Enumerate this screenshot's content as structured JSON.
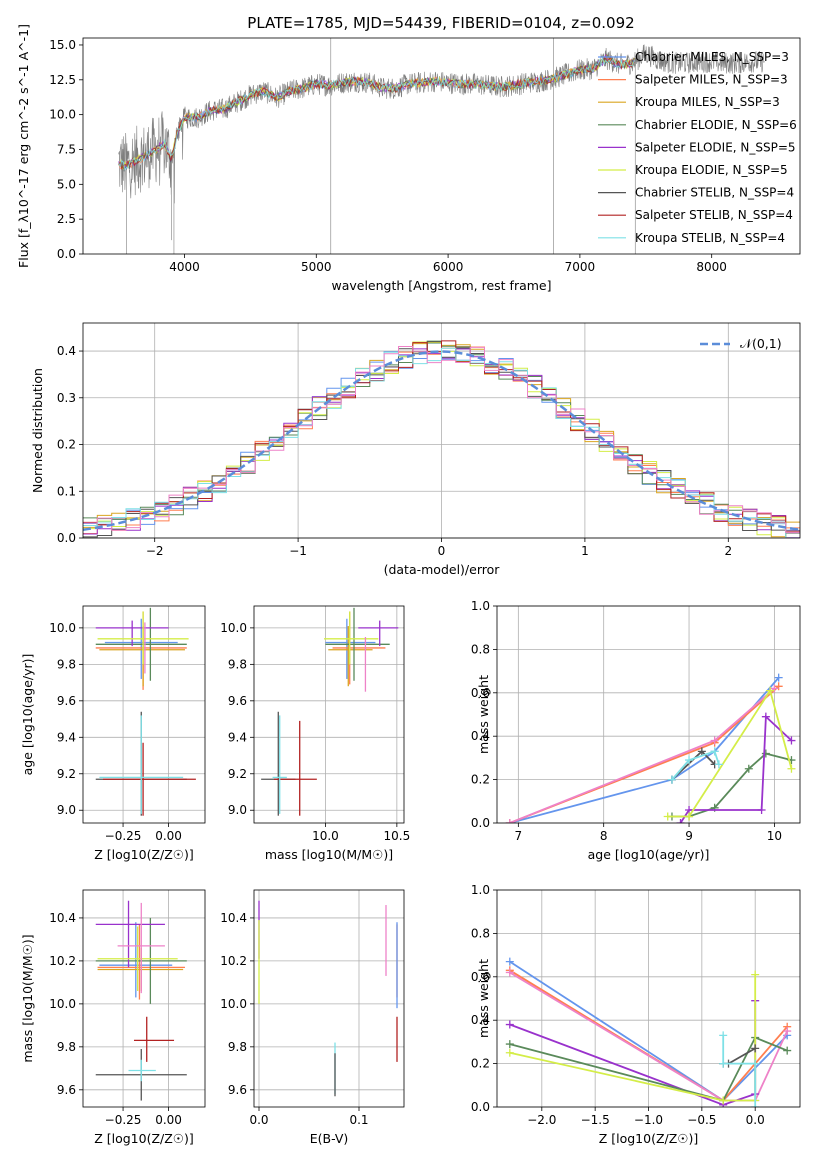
{
  "chart_data": [
    {
      "id": "spectrum",
      "type": "line",
      "title": "PLATE=1785, MJD=54439, FIBERID=0104, z=0.092",
      "xlabel": "wavelength [Angstrom, rest frame]",
      "ylabel": "Flux [f_λ10^-17 erg cm^-2 s^-1 A^-1]",
      "xlim": [
        3230,
        8670
      ],
      "ylim": [
        0,
        15.5
      ],
      "xticks": [
        4000,
        5000,
        6000,
        7000,
        8000
      ],
      "yticks": [
        0.0,
        2.5,
        5.0,
        7.5,
        10.0,
        12.5,
        15.0
      ],
      "grid": false,
      "legend_position": "right",
      "data_continuum_x": [
        3500,
        3550,
        3600,
        3650,
        3700,
        3750,
        3800,
        3850,
        3900,
        3950,
        4000,
        4100,
        4200,
        4300,
        4400,
        4500,
        4600,
        4700,
        4800,
        4900,
        5000,
        5100,
        5200,
        5300,
        5400,
        5500,
        5600,
        5700,
        5800,
        5900,
        6000,
        6100,
        6200,
        6300,
        6400,
        6500,
        6600,
        6700,
        6800,
        6900,
        7000,
        7100,
        7200,
        7300,
        7400,
        7500,
        7600,
        7700,
        7800,
        7900,
        8000,
        8100,
        8200,
        8300,
        8400
      ],
      "data_continuum_y": [
        6.5,
        6.3,
        6.5,
        6.8,
        7.0,
        7.3,
        7.6,
        7.9,
        6.8,
        8.8,
        9.8,
        9.8,
        10.3,
        10.4,
        10.9,
        11.4,
        11.7,
        11.2,
        11.7,
        11.9,
        12.2,
        12.1,
        12.3,
        12.4,
        12.3,
        11.9,
        11.9,
        12.2,
        12.3,
        12.4,
        12.3,
        12.2,
        12.2,
        12.1,
        12.0,
        12.1,
        12.3,
        12.4,
        12.6,
        12.9,
        13.2,
        13.3,
        14.0,
        13.6,
        13.7,
        14.4,
        13.9,
        13.7,
        13.7,
        13.8,
        13.8,
        13.7,
        13.7,
        13.8,
        13.8
      ],
      "legend": [
        {
          "label": "Chabrier MILES, N_SSP=3",
          "color": "#6495ed"
        },
        {
          "label": "Salpeter MILES, N_SSP=3",
          "color": "#ff7f50"
        },
        {
          "label": "Kroupa MILES, N_SSP=3",
          "color": "#daa520"
        },
        {
          "label": "Chabrier ELODIE, N_SSP=6",
          "color": "#5a8a5a"
        },
        {
          "label": "Salpeter ELODIE, N_SSP=5",
          "color": "#9932cc"
        },
        {
          "label": "Kroupa ELODIE, N_SSP=5",
          "color": "#d4ed48"
        },
        {
          "label": "Chabrier STELIB, N_SSP=4",
          "color": "#555555"
        },
        {
          "label": "Salpeter STELIB, N_SSP=4",
          "color": "#b22222"
        },
        {
          "label": "Kroupa STELIB, N_SSP=4",
          "color": "#7ee0e6"
        }
      ]
    },
    {
      "id": "residuals",
      "type": "line",
      "xlabel": "(data-model)/error",
      "ylabel": "Normed distribution",
      "xlim": [
        -2.5,
        2.5
      ],
      "ylim": [
        0,
        0.46
      ],
      "xticks": [
        -2,
        -1,
        0,
        1,
        2
      ],
      "yticks": [
        0.0,
        0.1,
        0.2,
        0.3,
        0.4
      ],
      "grid": true,
      "legend": [
        {
          "label": "𝒩(0,1)",
          "color": "#5b8dd9"
        }
      ],
      "legend_position": "top-right",
      "bin_edges_start": -2.5,
      "bin_width": 0.1
    },
    {
      "id": "age_vs_Z",
      "type": "scatter",
      "xlabel": "Z [log10(Z/Z☉)]",
      "ylabel": "age  [log10(age/yr)]",
      "xlim": [
        -0.47,
        0.2
      ],
      "ylim": [
        8.93,
        10.12
      ],
      "xticks": [
        -0.25,
        0.0
      ],
      "yticks": [
        9.0,
        9.2,
        9.4,
        9.6,
        9.8,
        10.0
      ],
      "grid": true,
      "points": [
        {
          "x": -0.15,
          "y": 9.92,
          "xerr": [
            0.2,
            0.2
          ],
          "yerr": [
            0.2,
            0.13
          ],
          "color": "#6495ed"
        },
        {
          "x": -0.14,
          "y": 9.89,
          "xerr": [
            0.26,
            0.24
          ],
          "yerr": [
            0.23,
            0.2
          ],
          "color": "#ff7f50"
        },
        {
          "x": -0.14,
          "y": 9.88,
          "xerr": [
            0.24,
            0.23
          ],
          "yerr": [
            0.2,
            0.13
          ],
          "color": "#daa520"
        },
        {
          "x": -0.1,
          "y": 9.91,
          "xerr": [
            0.3,
            0.2
          ],
          "yerr": [
            0.2,
            0.2
          ],
          "color": "#5a8a5a"
        },
        {
          "x": -0.2,
          "y": 10.0,
          "xerr": [
            0.2,
            0.2
          ],
          "yerr": [
            0.1,
            0.04
          ],
          "color": "#9932cc"
        },
        {
          "x": -0.14,
          "y": 9.94,
          "xerr": [
            0.25,
            0.25
          ],
          "yerr": [
            0.14,
            0.15
          ],
          "color": "#d4ed48"
        },
        {
          "x": -0.15,
          "y": 9.17,
          "xerr": [
            0.25,
            0.25
          ],
          "yerr": [
            0.2,
            0.37
          ],
          "color": "#555555"
        },
        {
          "x": -0.14,
          "y": 9.17,
          "xerr": [
            0.22,
            0.29
          ],
          "yerr": [
            0.2,
            0.2
          ],
          "color": "#b22222"
        },
        {
          "x": -0.15,
          "y": 9.18,
          "xerr": [
            0.23,
            0.23
          ],
          "yerr": [
            0.2,
            0.34
          ],
          "color": "#7ee0e6"
        },
        {
          "x": -0.13,
          "y": 9.9,
          "xerr": [
            0.0,
            0.0
          ],
          "yerr": [
            0.15,
            0.13
          ],
          "color": "#ee82c8"
        }
      ]
    },
    {
      "id": "age_vs_mass",
      "type": "scatter",
      "xlabel": "mass [log10(M/M☉)]",
      "ylabel": "",
      "xlim": [
        9.5,
        10.55
      ],
      "ylim": [
        8.93,
        10.12
      ],
      "xticks": [
        10.0,
        10.5
      ],
      "yticks": [
        9.0,
        9.2,
        9.4,
        9.6,
        9.8,
        10.0
      ],
      "grid": true,
      "points": [
        {
          "x": 10.15,
          "y": 9.92,
          "xerr": [
            0.15,
            0.2
          ],
          "yerr": [
            0.2,
            0.13
          ],
          "color": "#6495ed"
        },
        {
          "x": 10.17,
          "y": 9.89,
          "xerr": [
            0.12,
            0.25
          ],
          "yerr": [
            0.2,
            0.2
          ],
          "color": "#ff7f50"
        },
        {
          "x": 10.16,
          "y": 9.88,
          "xerr": [
            0.14,
            0.17
          ],
          "yerr": [
            0.2,
            0.13
          ],
          "color": "#daa520"
        },
        {
          "x": 10.2,
          "y": 9.91,
          "xerr": [
            0.2,
            0.25
          ],
          "yerr": [
            0.2,
            0.2
          ],
          "color": "#5a8a5a"
        },
        {
          "x": 10.38,
          "y": 10.0,
          "xerr": [
            0.15,
            0.13
          ],
          "yerr": [
            0.1,
            0.04
          ],
          "color": "#9932cc"
        },
        {
          "x": 10.17,
          "y": 9.94,
          "xerr": [
            0.18,
            0.2
          ],
          "yerr": [
            0.14,
            0.15
          ],
          "color": "#d4ed48"
        },
        {
          "x": 9.67,
          "y": 9.17,
          "xerr": [
            0.12,
            0.12
          ],
          "yerr": [
            0.2,
            0.37
          ],
          "color": "#555555"
        },
        {
          "x": 9.82,
          "y": 9.17,
          "xerr": [
            0.18,
            0.12
          ],
          "yerr": [
            0.2,
            0.32
          ],
          "color": "#b22222"
        },
        {
          "x": 9.68,
          "y": 9.18,
          "xerr": [
            0.05,
            0.05
          ],
          "yerr": [
            0.2,
            0.34
          ],
          "color": "#7ee0e6"
        },
        {
          "x": 10.28,
          "y": 9.9,
          "xerr": [
            0.0,
            0.0
          ],
          "yerr": [
            0.25,
            0.05
          ],
          "color": "#ee82c8"
        }
      ]
    },
    {
      "id": "mass_weight_vs_age",
      "type": "line",
      "xlabel": "age  [log10(age/yr)]",
      "ylabel": "mass weight",
      "xlim": [
        6.75,
        10.3
      ],
      "ylim": [
        0.0,
        1.0
      ],
      "xticks": [
        7,
        8,
        9,
        10
      ],
      "yticks": [
        0.0,
        0.2,
        0.4,
        0.6,
        0.8,
        1.0
      ],
      "grid": true,
      "series": [
        {
          "color": "#6495ed",
          "x": [
            6.9,
            8.8,
            9.3,
            10.05
          ],
          "y": [
            0.0,
            0.2,
            0.33,
            0.67
          ]
        },
        {
          "color": "#ff7f50",
          "x": [
            6.9,
            9.3,
            10.05
          ],
          "y": [
            0.0,
            0.37,
            0.63
          ]
        },
        {
          "color": "#ee82c8",
          "x": [
            6.9,
            9.3,
            10.0
          ],
          "y": [
            0.0,
            0.38,
            0.62
          ]
        },
        {
          "color": "#5a8a5a",
          "x": [
            8.8,
            9.0,
            9.3,
            9.7,
            9.9,
            10.2
          ],
          "y": [
            0.03,
            0.03,
            0.07,
            0.25,
            0.32,
            0.29
          ]
        },
        {
          "color": "#9932cc",
          "x": [
            8.9,
            9.0,
            9.85,
            9.9,
            10.2
          ],
          "y": [
            0.0,
            0.06,
            0.06,
            0.49,
            0.38
          ]
        },
        {
          "color": "#d4ed48",
          "x": [
            8.75,
            9.0,
            9.95,
            10.2
          ],
          "y": [
            0.03,
            0.03,
            0.61,
            0.25
          ]
        },
        {
          "color": "#555555",
          "x": [
            8.8,
            9.15,
            9.3
          ],
          "y": [
            0.2,
            0.33,
            0.27
          ]
        },
        {
          "color": "#7ee0e6",
          "x": [
            8.8,
            9.0,
            9.3,
            9.35
          ],
          "y": [
            0.2,
            0.29,
            0.33,
            0.27
          ]
        }
      ]
    },
    {
      "id": "mass_vs_Z",
      "type": "scatter",
      "xlabel": "Z [log10(Z/Z☉)]",
      "ylabel": "mass [log10(M/M☉)]",
      "xlim": [
        -0.47,
        0.2
      ],
      "ylim": [
        9.52,
        10.53
      ],
      "xticks": [
        -0.25,
        0.0
      ],
      "yticks": [
        9.6,
        9.8,
        10.0,
        10.2,
        10.4
      ],
      "grid": true,
      "points": [
        {
          "x": -0.18,
          "y": 10.18,
          "xerr": [
            0.2,
            0.2
          ],
          "yerr": [
            0.15,
            0.2
          ],
          "color": "#6495ed"
        },
        {
          "x": -0.16,
          "y": 10.17,
          "xerr": [
            0.23,
            0.25
          ],
          "yerr": [
            0.15,
            0.2
          ],
          "color": "#ff7f50"
        },
        {
          "x": -0.15,
          "y": 10.16,
          "xerr": [
            0.24,
            0.23
          ],
          "yerr": [
            0.1,
            0.1
          ],
          "color": "#daa520"
        },
        {
          "x": -0.1,
          "y": 10.2,
          "xerr": [
            0.3,
            0.2
          ],
          "yerr": [
            0.2,
            0.2
          ],
          "color": "#5a8a5a"
        },
        {
          "x": -0.22,
          "y": 10.37,
          "xerr": [
            0.18,
            0.2
          ],
          "yerr": [
            0.2,
            0.11
          ],
          "color": "#9932cc"
        },
        {
          "x": -0.17,
          "y": 10.21,
          "xerr": [
            0.22,
            0.22
          ],
          "yerr": [
            0.15,
            0.15
          ],
          "color": "#d4ed48"
        },
        {
          "x": -0.15,
          "y": 9.67,
          "xerr": [
            0.25,
            0.25
          ],
          "yerr": [
            0.12,
            0.12
          ],
          "color": "#555555"
        },
        {
          "x": -0.12,
          "y": 9.83,
          "xerr": [
            0.07,
            0.15
          ],
          "yerr": [
            0.1,
            0.11
          ],
          "color": "#b22222"
        },
        {
          "x": -0.15,
          "y": 9.69,
          "xerr": [
            0.07,
            0.08
          ],
          "yerr": [
            0.05,
            0.05
          ],
          "color": "#7ee0e6"
        },
        {
          "x": -0.15,
          "y": 10.27,
          "xerr": [
            0.13,
            0.13
          ],
          "yerr": [
            0.22,
            0.2
          ],
          "color": "#ee82c8"
        }
      ]
    },
    {
      "id": "mass_vs_ebv",
      "type": "scatter",
      "xlabel": "E(B-V)",
      "ylabel": "",
      "xlim": [
        -0.005,
        0.145
      ],
      "ylim": [
        9.52,
        10.53
      ],
      "xticks": [
        0.0,
        0.1
      ],
      "yticks": [
        9.6,
        9.8,
        10.0,
        10.2,
        10.4
      ],
      "grid": true,
      "points": [
        {
          "x": 0.0,
          "y": 10.36,
          "xerr": [
            0,
            0
          ],
          "yerr": [
            0.15,
            0.12
          ],
          "color": "#9932cc"
        },
        {
          "x": 0.0,
          "y": 10.21,
          "xerr": [
            0,
            0
          ],
          "yerr": [
            0.21,
            0.18
          ],
          "color": "#d4ed48"
        },
        {
          "x": 0.127,
          "y": 10.25,
          "xerr": [
            0,
            0
          ],
          "yerr": [
            0.12,
            0.21
          ],
          "color": "#ee82c8"
        },
        {
          "x": 0.138,
          "y": 10.2,
          "xerr": [
            0,
            0
          ],
          "yerr": [
            0.17,
            0.17
          ],
          "color": "#ff7f50"
        },
        {
          "x": 0.138,
          "y": 9.83,
          "xerr": [
            0,
            0
          ],
          "yerr": [
            0.1,
            0.11
          ],
          "color": "#b22222"
        },
        {
          "x": 0.076,
          "y": 9.7,
          "xerr": [
            0,
            0
          ],
          "yerr": [
            0.12,
            0.12
          ],
          "color": "#7ee0e6"
        },
        {
          "x": 0.076,
          "y": 9.67,
          "xerr": [
            0,
            0
          ],
          "yerr": [
            0.1,
            0.1
          ],
          "color": "#555555"
        },
        {
          "x": 0.138,
          "y": 10.18,
          "xerr": [
            0,
            0
          ],
          "yerr": [
            0.2,
            0.2
          ],
          "color": "#6495ed"
        }
      ]
    },
    {
      "id": "mass_weight_vs_Z",
      "type": "line",
      "xlabel": "Z [log10(Z/Z☉)]",
      "ylabel": "mass weight",
      "xlim": [
        -2.42,
        0.42
      ],
      "ylim": [
        0.0,
        1.0
      ],
      "xticks": [
        -2.0,
        -1.5,
        -1.0,
        -0.5,
        0.0
      ],
      "yticks": [
        0.0,
        0.2,
        0.4,
        0.6,
        0.8,
        1.0
      ],
      "grid": true,
      "series": [
        {
          "color": "#6495ed",
          "x": [
            -2.3,
            -0.3,
            0.3
          ],
          "y": [
            0.67,
            0.03,
            0.33
          ]
        },
        {
          "color": "#ff7f50",
          "x": [
            -2.3,
            -0.3,
            0.3
          ],
          "y": [
            0.63,
            0.03,
            0.37
          ]
        },
        {
          "color": "#ee82c8",
          "x": [
            -2.3,
            -0.3,
            0.0,
            0.3
          ],
          "y": [
            0.62,
            0.03,
            0.03,
            0.35
          ]
        },
        {
          "color": "#9932cc",
          "x": [
            -2.3,
            -0.3,
            0.0,
            0.0
          ],
          "y": [
            0.38,
            0.01,
            0.06,
            0.49
          ]
        },
        {
          "color": "#5a8a5a",
          "x": [
            -2.3,
            -0.3,
            0.0,
            0.3
          ],
          "y": [
            0.29,
            0.03,
            0.32,
            0.26
          ]
        },
        {
          "color": "#d4ed48",
          "x": [
            -2.3,
            -0.3,
            0.0,
            0.0
          ],
          "y": [
            0.25,
            0.03,
            0.03,
            0.61
          ]
        },
        {
          "color": "#555555",
          "x": [
            -0.3,
            -0.25,
            0.0
          ],
          "y": [
            0.2,
            0.2,
            0.27
          ]
        },
        {
          "color": "#7ee0e6",
          "x": [
            -0.3,
            -0.3,
            0.0,
            0.0
          ],
          "y": [
            0.33,
            0.2,
            0.2,
            0.0
          ]
        }
      ]
    }
  ]
}
